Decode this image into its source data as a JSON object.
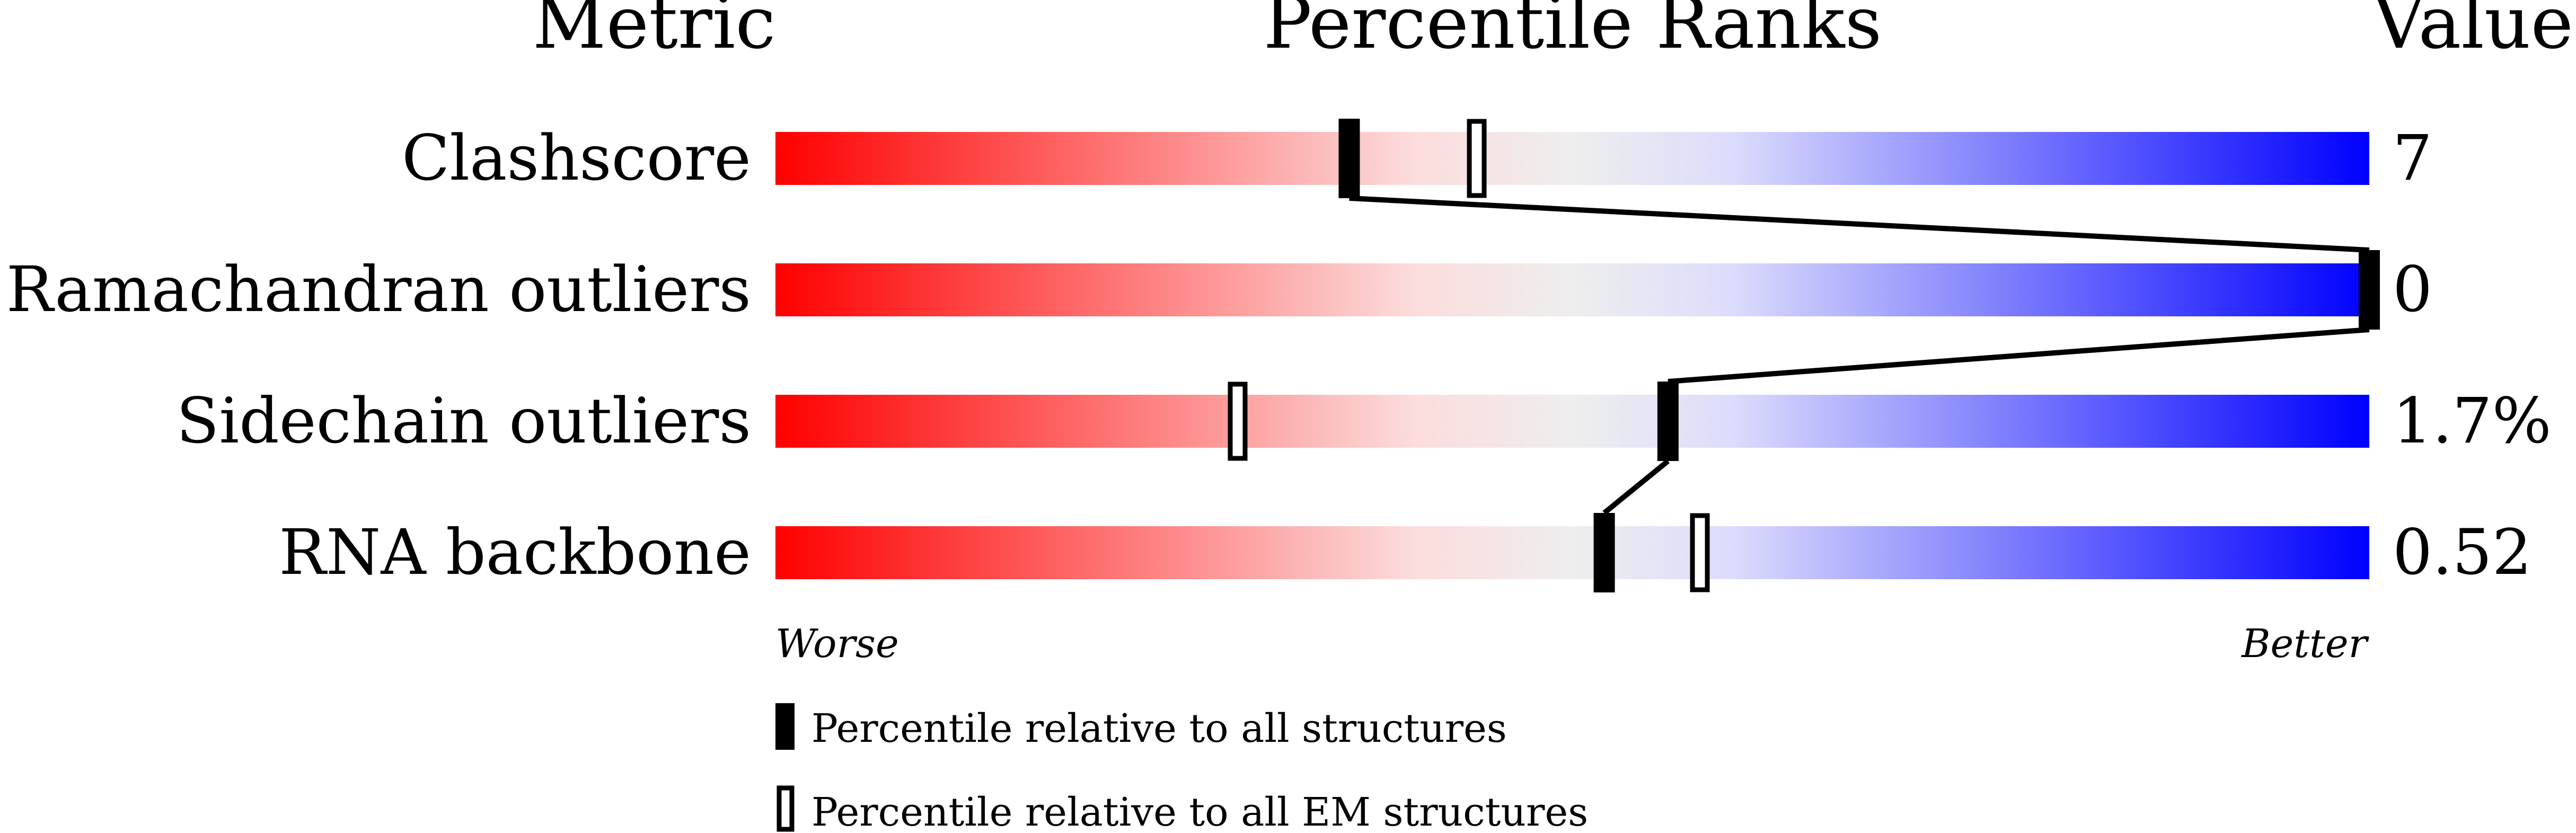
{
  "chart_data": {
    "type": "percentile-bar",
    "headers": {
      "metric": "Metric",
      "ranks": "Percentile Ranks",
      "value": "Value"
    },
    "xlim": [
      0,
      100
    ],
    "axis_labels": {
      "worse": "Worse",
      "better": "Better"
    },
    "gradient_colors": [
      "#ff0000",
      "#fcdcdc",
      "#eeeeee",
      "#dcdcfc",
      "#0000ff"
    ],
    "metrics": [
      {
        "name": "Clashscore",
        "value": "7",
        "percentile_all": 36,
        "percentile_em": 44
      },
      {
        "name": "Ramachandran outliers",
        "value": "0",
        "percentile_all": 100,
        "percentile_em": null
      },
      {
        "name": "Sidechain outliers",
        "value": "1.7%",
        "percentile_all": 56,
        "percentile_em": 29
      },
      {
        "name": "RNA backbone",
        "value": "0.52",
        "percentile_all": 52,
        "percentile_em": 58
      }
    ],
    "legend": [
      {
        "marker": "filled",
        "label": "Percentile relative to all structures"
      },
      {
        "marker": "open",
        "label": "Percentile relative to all EM structures"
      }
    ]
  }
}
